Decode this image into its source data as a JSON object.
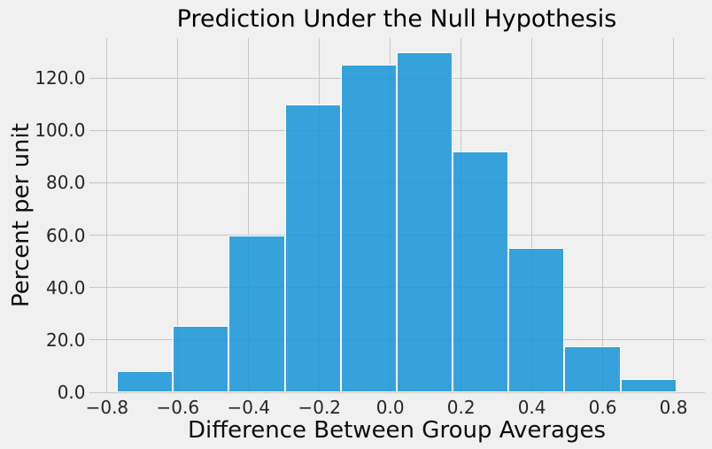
{
  "chart_data": {
    "type": "bar",
    "subtype": "histogram",
    "title": "Prediction Under the Null Hypothesis",
    "xlabel": "Difference Between Group Averages",
    "ylabel": "Percent per unit",
    "bin_edges": [
      -0.772,
      -0.614,
      -0.456,
      -0.298,
      -0.14,
      0.018,
      0.176,
      0.334,
      0.492,
      0.65,
      0.808
    ],
    "values": [
      8,
      25.5,
      60,
      110,
      125,
      130,
      92,
      55,
      17.5,
      5
    ],
    "xticks": [
      -0.8,
      -0.6,
      -0.4,
      -0.2,
      0.0,
      0.2,
      0.4,
      0.6,
      0.8
    ],
    "xtick_labels": [
      "−0.8",
      "−0.6",
      "−0.4",
      "−0.2",
      "0.0",
      "0.2",
      "0.4",
      "0.6",
      "0.8"
    ],
    "yticks": [
      0,
      20,
      40,
      60,
      80,
      100,
      120
    ],
    "ytick_labels": [
      "0.0",
      "20.0",
      "40.0",
      "60.0",
      "80.0",
      "100.0",
      "120.0"
    ],
    "xlim": [
      -0.851,
      0.8875
    ],
    "ylim": [
      0,
      135.3
    ],
    "grid": true,
    "legend": false,
    "colors": {
      "background": "#f0f0f0",
      "grid": "#c6c6c6",
      "bar_fill": "#1494d7",
      "bar_fill_alpha": 0.85,
      "bar_edge": "#ffffff",
      "title_text": "#000000",
      "label_text": "#0d0d0d",
      "tick_text": "#262626"
    }
  }
}
